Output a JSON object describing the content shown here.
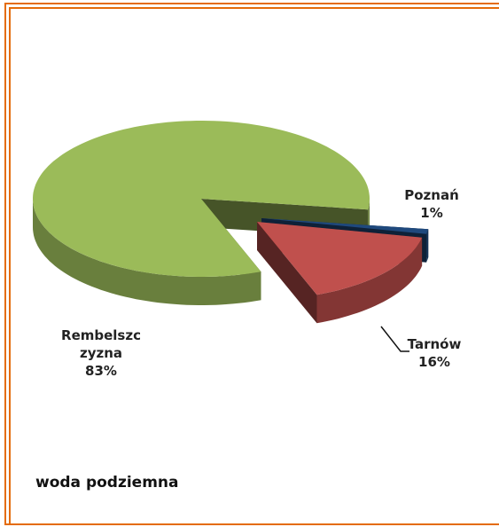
{
  "chart_data": {
    "type": "pie3d",
    "title": "woda podziemna",
    "categories": [
      "Poznań",
      "Tarnów",
      "Rembelszczyzna"
    ],
    "values": [
      1,
      16,
      83
    ],
    "value_labels": [
      "1%",
      "16%",
      "83%"
    ],
    "colors": [
      "#1f497d",
      "#c0504d",
      "#9bbb59"
    ]
  }
}
